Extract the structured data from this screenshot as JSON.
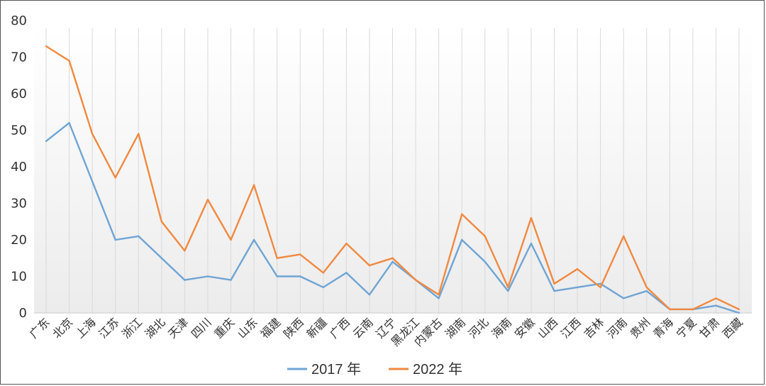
{
  "chart_data": {
    "type": "line",
    "title": "",
    "xlabel": "",
    "ylabel": "",
    "ylim": [
      0,
      80
    ],
    "yticks": [
      0,
      10,
      20,
      30,
      40,
      50,
      60,
      70,
      80
    ],
    "grid": "vertical-lines-per-category",
    "legend": "bottom",
    "categories": [
      "广东",
      "北京",
      "上海",
      "江苏",
      "浙江",
      "湖北",
      "天津",
      "四川",
      "重庆",
      "山东",
      "福建",
      "陕西",
      "新疆",
      "广西",
      "云南",
      "辽宁",
      "黑龙江",
      "内蒙古",
      "湖南",
      "河北",
      "海南",
      "安徽",
      "山西",
      "江西",
      "吉林",
      "河南",
      "贵州",
      "青海",
      "宁夏",
      "甘肃",
      "西藏"
    ],
    "series": [
      {
        "name": "2017 年",
        "color": "#6fa4d4",
        "values": [
          47,
          52,
          36,
          20,
          21,
          15,
          9,
          10,
          9,
          20,
          10,
          10,
          7,
          11,
          5,
          14,
          9,
          4,
          20,
          14,
          6,
          19,
          6,
          7,
          8,
          4,
          6,
          1,
          1,
          2,
          0
        ]
      },
      {
        "name": "2022 年",
        "color": "#f0893f",
        "values": [
          73,
          69,
          49,
          37,
          49,
          25,
          17,
          31,
          20,
          35,
          15,
          16,
          11,
          19,
          13,
          15,
          9,
          5,
          27,
          21,
          7,
          26,
          8,
          12,
          7,
          21,
          7,
          1,
          1,
          4,
          1
        ]
      }
    ]
  }
}
